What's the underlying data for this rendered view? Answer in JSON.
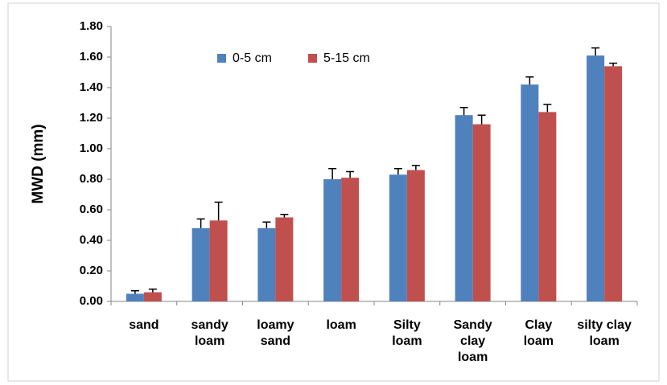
{
  "chart_data": {
    "type": "bar",
    "ylabel": "MWD (mm)",
    "categories": [
      "sand",
      "sandy loam",
      "loamy sand",
      "loam",
      "Silty loam",
      "Sandy clay loam",
      "Clay loam",
      "silty clay loam"
    ],
    "series": [
      {
        "name": "0-5 cm",
        "color": "#4f81bd",
        "values": [
          0.05,
          0.48,
          0.48,
          0.8,
          0.83,
          1.22,
          1.42,
          1.61
        ],
        "errors": [
          0.02,
          0.06,
          0.04,
          0.07,
          0.04,
          0.05,
          0.05,
          0.05
        ]
      },
      {
        "name": "5-15 cm",
        "color": "#c0504d",
        "values": [
          0.06,
          0.53,
          0.55,
          0.81,
          0.86,
          1.16,
          1.24,
          1.54
        ],
        "errors": [
          0.02,
          0.12,
          0.02,
          0.04,
          0.03,
          0.06,
          0.05,
          0.02
        ]
      }
    ],
    "ylim": [
      0,
      1.8
    ],
    "yticks": [
      {
        "value": 0,
        "label": "0.00"
      },
      {
        "value": 0.2,
        "label": "0.20"
      },
      {
        "value": 0.4,
        "label": "0.40"
      },
      {
        "value": 0.6,
        "label": "0.60"
      },
      {
        "value": 0.8,
        "label": "0.80"
      },
      {
        "value": 1.0,
        "label": "1.00"
      },
      {
        "value": 1.2,
        "label": "1.20"
      },
      {
        "value": 1.4,
        "label": "1.40"
      },
      {
        "value": 1.6,
        "label": "1.60"
      },
      {
        "value": 1.8,
        "label": "1.80"
      }
    ],
    "legend": "top"
  }
}
